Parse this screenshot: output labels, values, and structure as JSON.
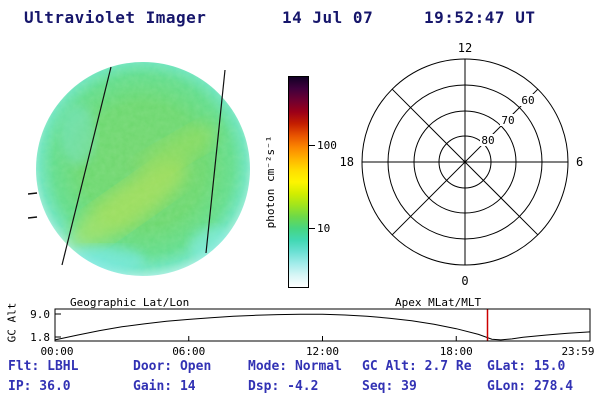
{
  "colors": {
    "header_text": "#16166b",
    "status_text": "#3232b4",
    "axis": "#000000",
    "marker": "#cc0000",
    "disk_base": "#6cd86f"
  },
  "header": {
    "title": "Ultraviolet Imager",
    "date": "14 Jul 07",
    "time": "19:52:47 UT"
  },
  "colorbar": {
    "label": "photon cm⁻²s⁻¹",
    "tick_labels": [
      "100",
      "10"
    ],
    "stops": [
      "#120026",
      "#40003c",
      "#6e0030",
      "#9c0018",
      "#c41e00",
      "#e85200",
      "#fb8500",
      "#ffb300",
      "#ffdd00",
      "#fdf500",
      "#d2ee00",
      "#a0e41e",
      "#6cd94a",
      "#46d682",
      "#42d8b4",
      "#6ce0d4",
      "#a2ecea",
      "#d8f6f6",
      "#ffffff"
    ]
  },
  "polar_plot": {
    "mlt_top": "12",
    "mlt_left": "18",
    "mlt_right": "6",
    "mlt_bottom": "0",
    "lat_labels": [
      "60",
      "70",
      "80"
    ]
  },
  "orbit_plot": {
    "left_title": "Geographic Lat/Lon",
    "right_title": "Apex MLat/MLT",
    "y_label": "GC Alt",
    "y_ticks": [
      "9.0",
      "1.8"
    ],
    "x_ticks": [
      "00:00",
      "06:00",
      "12:00",
      "18:00",
      "23:59"
    ],
    "curve": [
      [
        0,
        0.9
      ],
      [
        1,
        2.4
      ],
      [
        2,
        3.8
      ],
      [
        3,
        5.0
      ],
      [
        4,
        5.9
      ],
      [
        5,
        6.7
      ],
      [
        6,
        7.3
      ],
      [
        7,
        7.8
      ],
      [
        8,
        8.3
      ],
      [
        9,
        8.6
      ],
      [
        10,
        8.8
      ],
      [
        11,
        8.9
      ],
      [
        12,
        8.9
      ],
      [
        13,
        8.7
      ],
      [
        14,
        8.3
      ],
      [
        15,
        7.7
      ],
      [
        16,
        6.9
      ],
      [
        17,
        5.8
      ],
      [
        18,
        4.4
      ],
      [
        19,
        2.6
      ],
      [
        19.6,
        1.1
      ],
      [
        20,
        0.9
      ],
      [
        20.5,
        1.2
      ],
      [
        21,
        1.7
      ],
      [
        22,
        2.4
      ],
      [
        23,
        3.0
      ],
      [
        24,
        3.4
      ]
    ],
    "marker_hours": 19.4
  },
  "status": {
    "row1": [
      "Flt: LBHL",
      "Door: Open",
      "Mode: Normal",
      "GC Alt: 2.7 Re",
      "GLat: 15.0"
    ],
    "row2": [
      "IP: 36.0",
      "Gain: 14",
      "Dsp: -4.2",
      "Seq: 39",
      "GLon: 278.4"
    ]
  }
}
